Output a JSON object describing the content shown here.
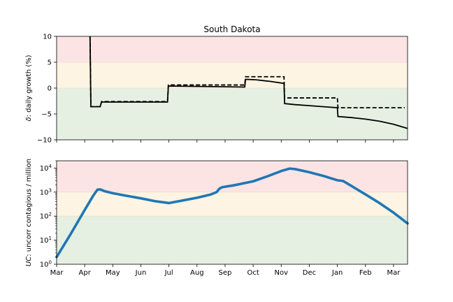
{
  "chart_data": [
    {
      "type": "line",
      "title": "South Dakota",
      "ylabel_italic": "δ",
      "ylabel_rest": ": daily growth (%)",
      "ylim": [
        -10,
        10
      ],
      "yticks": [
        10,
        5,
        0,
        -5,
        -10
      ],
      "ytick_labels": [
        "10",
        "5",
        "0",
        "−5",
        "−10"
      ],
      "xlim": [
        0,
        12.5
      ],
      "bands": [
        {
          "from": 5,
          "to": 10,
          "color": "#fde4e4"
        },
        {
          "from": 0,
          "to": 5,
          "color": "#fdf4e3"
        },
        {
          "from": -10,
          "to": 0,
          "color": "#e5f0e2"
        }
      ],
      "series": [
        {
          "style": "solid",
          "color": "#000000",
          "points": [
            [
              1.19,
              10
            ],
            [
              1.22,
              -3.6
            ],
            [
              1.55,
              -3.6
            ],
            [
              1.6,
              -2.7
            ],
            [
              3.95,
              -2.7
            ],
            [
              3.98,
              0.4
            ],
            [
              6.7,
              0.2
            ],
            [
              6.73,
              1.7
            ],
            [
              7.1,
              1.6
            ],
            [
              7.6,
              1.3
            ],
            [
              8.1,
              0.9
            ],
            [
              8.12,
              -3.0
            ],
            [
              8.5,
              -3.2
            ],
            [
              9.0,
              -3.4
            ],
            [
              9.5,
              -3.6
            ],
            [
              10.0,
              -3.8
            ],
            [
              10.02,
              -5.5
            ],
            [
              10.5,
              -5.7
            ],
            [
              11.0,
              -6.0
            ],
            [
              11.5,
              -6.4
            ],
            [
              12.0,
              -7.0
            ],
            [
              12.5,
              -7.8
            ]
          ]
        },
        {
          "style": "dashed",
          "color": "#000000",
          "points": [
            [
              1.19,
              10
            ],
            [
              1.22,
              -3.6
            ],
            [
              1.55,
              -3.6
            ],
            [
              1.6,
              -2.6
            ],
            [
              3.95,
              -2.6
            ],
            [
              3.98,
              0.6
            ],
            [
              6.7,
              0.6
            ],
            [
              6.73,
              2.2
            ],
            [
              8.1,
              2.2
            ],
            [
              8.12,
              -1.9
            ],
            [
              10.0,
              -1.9
            ],
            [
              10.02,
              -3.8
            ],
            [
              12.4,
              -3.8
            ]
          ]
        }
      ]
    },
    {
      "type": "line",
      "ylabel_italic": "UC",
      "ylabel_rest": ": uncorr contagious / million",
      "scale": "log",
      "ylim": [
        1,
        20000
      ],
      "ytick_exponents": [
        0,
        1,
        2,
        3,
        4
      ],
      "xlim": [
        0,
        12.5
      ],
      "xticks": [
        0,
        1,
        2,
        3,
        4,
        5,
        6,
        7,
        8,
        9,
        10,
        11,
        12
      ],
      "xtick_labels": [
        "Mar",
        "Apr",
        "May",
        "Jun",
        "Jul",
        "Aug",
        "Sep",
        "Oct",
        "Nov",
        "Dec",
        "Jan",
        "Feb",
        "Mar"
      ],
      "bands": [
        {
          "from": 1000,
          "to": 20000,
          "color": "#fde4e4"
        },
        {
          "from": 100,
          "to": 1000,
          "color": "#fdf4e3"
        },
        {
          "from": 1,
          "to": 100,
          "color": "#e5f0e2"
        }
      ],
      "series": [
        {
          "style": "solid",
          "color": "#1f77b4",
          "points": [
            [
              0,
              2
            ],
            [
              0.5,
              18
            ],
            [
              1.0,
              180
            ],
            [
              1.3,
              700
            ],
            [
              1.45,
              1250
            ],
            [
              1.55,
              1300
            ],
            [
              1.7,
              1100
            ],
            [
              2.0,
              900
            ],
            [
              2.5,
              700
            ],
            [
              3.0,
              550
            ],
            [
              3.5,
              420
            ],
            [
              4.0,
              350
            ],
            [
              4.5,
              450
            ],
            [
              5.0,
              580
            ],
            [
              5.5,
              800
            ],
            [
              5.7,
              1000
            ],
            [
              5.8,
              1400
            ],
            [
              5.9,
              1600
            ],
            [
              6.3,
              1900
            ],
            [
              7.0,
              2800
            ],
            [
              7.5,
              4500
            ],
            [
              8.0,
              7500
            ],
            [
              8.3,
              9500
            ],
            [
              8.5,
              9000
            ],
            [
              9.0,
              6700
            ],
            [
              9.5,
              4700
            ],
            [
              10.0,
              3100
            ],
            [
              10.2,
              2900
            ],
            [
              10.5,
              1800
            ],
            [
              11.0,
              800
            ],
            [
              11.5,
              350
            ],
            [
              12.0,
              140
            ],
            [
              12.5,
              50
            ]
          ]
        }
      ]
    }
  ]
}
